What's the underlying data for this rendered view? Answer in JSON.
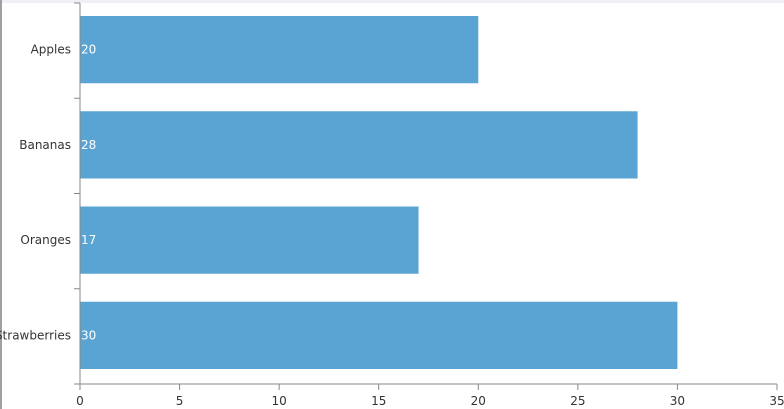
{
  "chart_data": {
    "type": "bar",
    "orientation": "horizontal",
    "categories": [
      "Apples",
      "Bananas",
      "Oranges",
      "Strawberries"
    ],
    "values": [
      20,
      28,
      17,
      30
    ],
    "data_labels": [
      "20",
      "28",
      "17",
      "30"
    ],
    "title": "",
    "xlabel": "",
    "ylabel": "",
    "xlim": [
      0,
      35
    ],
    "x_ticks": [
      "0",
      "5",
      "10",
      "15",
      "20",
      "25",
      "30",
      "35"
    ],
    "grid": false,
    "bar_color": "#5aa4d4",
    "label_color": "#ffffff",
    "axis_color": "#888888",
    "text_color": "#333333"
  }
}
